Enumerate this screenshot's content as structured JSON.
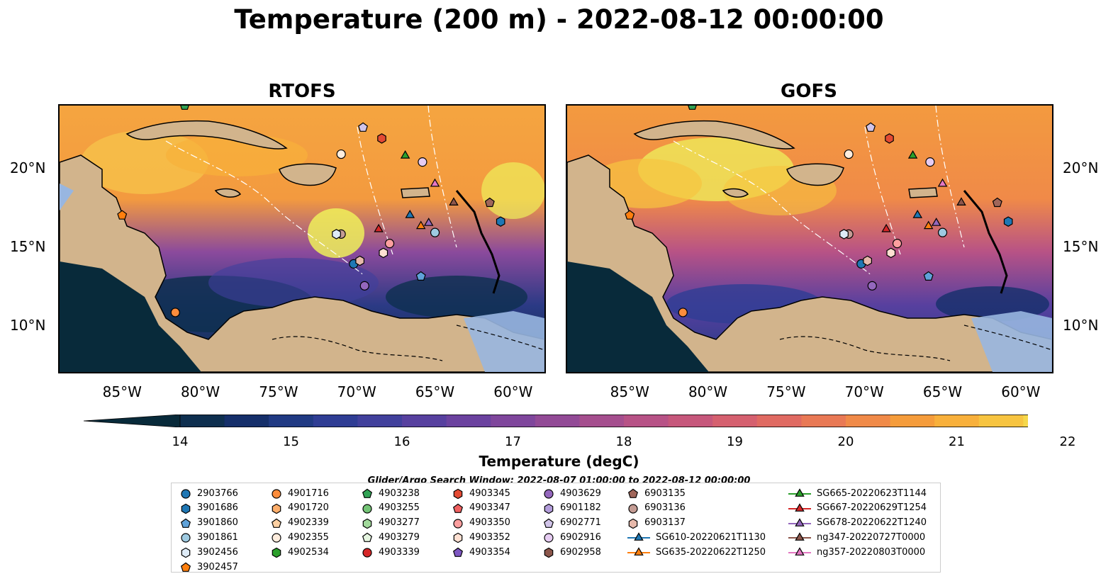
{
  "title": "Temperature (200 m) - 2022-08-12 00:00:00",
  "panels": [
    {
      "title": "RTOFS"
    },
    {
      "title": "GOFS"
    }
  ],
  "map": {
    "extent": {
      "lon": [
        -89,
        -58
      ],
      "lat": [
        7,
        24
      ]
    },
    "lon_ticks": [
      "85°W",
      "80°W",
      "75°W",
      "70°W",
      "65°W",
      "60°W"
    ],
    "lat_ticks": [
      "20°N",
      "15°N",
      "10°N"
    ],
    "colors": {
      "ocean_shelf": "#98b6e0",
      "land": "#d2b48c",
      "deep_ocean": "#082a3a"
    }
  },
  "colorbar": {
    "label": "Temperature (degC)",
    "ticks": [
      "14",
      "15",
      "16",
      "17",
      "18",
      "19",
      "20",
      "21",
      "22"
    ],
    "range": [
      14,
      22
    ],
    "colors": [
      "#082a3a",
      "#0e2f4f",
      "#152f6a",
      "#203a83",
      "#2f3d94",
      "#41409c",
      "#57409f",
      "#6b429f",
      "#7f469c",
      "#924a96",
      "#a54e8e",
      "#b75286",
      "#c6577b",
      "#d5606f",
      "#e06a62",
      "#e97955",
      "#f08a48",
      "#f59c3b",
      "#f8b03b",
      "#f7c440",
      "#f5d84b",
      "#eef05b"
    ]
  },
  "search_window": "Glider/Argo Search Window: 2022-08-07 01:00:00 to 2022-08-12 00:00:00",
  "legend": [
    {
      "label": "2903766",
      "marker": "circle",
      "color": "#1f77b4"
    },
    {
      "label": "3901686",
      "marker": "hexagon",
      "color": "#1f77b4"
    },
    {
      "label": "3901860",
      "marker": "pentagon",
      "color": "#5fa2d9"
    },
    {
      "label": "3901861",
      "marker": "circle",
      "color": "#9ecae1"
    },
    {
      "label": "3902456",
      "marker": "hexagon",
      "color": "#deebf7"
    },
    {
      "label": "3902457",
      "marker": "pentagon",
      "color": "#ff7f0e"
    },
    {
      "label": "4901716",
      "marker": "circle",
      "color": "#fd8d3c"
    },
    {
      "label": "4901720",
      "marker": "hexagon",
      "color": "#fdae6b"
    },
    {
      "label": "4902339",
      "marker": "pentagon",
      "color": "#fdd0a2"
    },
    {
      "label": "4902355",
      "marker": "circle",
      "color": "#feedde"
    },
    {
      "label": "4902534",
      "marker": "hexagon",
      "color": "#2ca02c"
    },
    {
      "label": "4903238",
      "marker": "pentagon",
      "color": "#31a354"
    },
    {
      "label": "4903255",
      "marker": "circle",
      "color": "#74c476"
    },
    {
      "label": "4903277",
      "marker": "hexagon",
      "color": "#a1d99b"
    },
    {
      "label": "4903279",
      "marker": "pentagon",
      "color": "#e5f5e0"
    },
    {
      "label": "4903339",
      "marker": "circle",
      "color": "#d62728"
    },
    {
      "label": "4903345",
      "marker": "hexagon",
      "color": "#e34a33"
    },
    {
      "label": "4903347",
      "marker": "pentagon",
      "color": "#f06060"
    },
    {
      "label": "4903350",
      "marker": "circle",
      "color": "#fc9f9f"
    },
    {
      "label": "4903352",
      "marker": "hexagon",
      "color": "#fee0d2"
    },
    {
      "label": "4903354",
      "marker": "pentagon",
      "color": "#7e57c2"
    },
    {
      "label": "4903629",
      "marker": "circle",
      "color": "#9467bd"
    },
    {
      "label": "6901182",
      "marker": "hexagon",
      "color": "#b39ddb"
    },
    {
      "label": "6902771",
      "marker": "pentagon",
      "color": "#d1c4e9"
    },
    {
      "label": "6902916",
      "marker": "circle",
      "color": "#e6ccf2"
    },
    {
      "label": "6902958",
      "marker": "hexagon",
      "color": "#8c564b"
    },
    {
      "label": "6903135",
      "marker": "pentagon",
      "color": "#a0665a"
    },
    {
      "label": "6903136",
      "marker": "circle",
      "color": "#c49c94"
    },
    {
      "label": "6903137",
      "marker": "hexagon",
      "color": "#e7b9ab"
    },
    {
      "label": "SG610-20220621T1130",
      "marker": "triangle-line",
      "color": "#1f77b4"
    },
    {
      "label": "SG635-20220622T1250",
      "marker": "triangle-line",
      "color": "#ff7f0e"
    },
    {
      "label": "SG665-20220623T1144",
      "marker": "triangle-line",
      "color": "#2ca02c"
    },
    {
      "label": "SG667-20220629T1254",
      "marker": "triangle-line",
      "color": "#d62728"
    },
    {
      "label": "SG678-20220622T1240",
      "marker": "triangle-line",
      "color": "#9467bd"
    },
    {
      "label": "ng347-20220727T0000",
      "marker": "triangle-line",
      "color": "#8c564b"
    },
    {
      "label": "ng357-20220803T0000",
      "marker": "triangle-line",
      "color": "#e377c2"
    }
  ],
  "points": [
    {
      "id": "3902457",
      "lon": -85,
      "lat": 17
    },
    {
      "id": "4901716",
      "lon": -81.6,
      "lat": 10.8
    },
    {
      "id": "4902355",
      "lon": -71,
      "lat": 20.9
    },
    {
      "id": "6903136",
      "lon": -71,
      "lat": 15.8
    },
    {
      "id": "3902456",
      "lon": -71.3,
      "lat": 15.8
    },
    {
      "id": "6902771",
      "lon": -69.6,
      "lat": 22.6
    },
    {
      "id": "4903345",
      "lon": -68.4,
      "lat": 21.9
    },
    {
      "id": "SG665-20220623T1144",
      "lon": -66.9,
      "lat": 20.8
    },
    {
      "id": "6902916",
      "lon": -65.8,
      "lat": 20.4
    },
    {
      "id": "ng357-20220803T0000",
      "lon": -65,
      "lat": 19
    },
    {
      "id": "ng347-20220727T0000",
      "lon": -63.8,
      "lat": 17.8
    },
    {
      "id": "6903135",
      "lon": -61.5,
      "lat": 17.8
    },
    {
      "id": "SG610-20220621T1130",
      "lon": -66.6,
      "lat": 17
    },
    {
      "id": "SG667-20220629T1254",
      "lon": -68.6,
      "lat": 16.1
    },
    {
      "id": "SG635-20220622T1250",
      "lon": -65.9,
      "lat": 16.3
    },
    {
      "id": "SG678-20220622T1240",
      "lon": -65.4,
      "lat": 16.5
    },
    {
      "id": "3901861",
      "lon": -65,
      "lat": 15.9
    },
    {
      "id": "3901686",
      "lon": -60.8,
      "lat": 16.6
    },
    {
      "id": "4903350",
      "lon": -67.9,
      "lat": 15.2
    },
    {
      "id": "4903352",
      "lon": -68.3,
      "lat": 14.6
    },
    {
      "id": "2903766",
      "lon": -70.2,
      "lat": 13.9
    },
    {
      "id": "6903137",
      "lon": -69.8,
      "lat": 14.1
    },
    {
      "id": "3901860",
      "lon": -65.9,
      "lat": 13.1
    },
    {
      "id": "4903629",
      "lon": -69.5,
      "lat": 12.5
    },
    {
      "id": "4903238",
      "lon": -81,
      "lat": 24
    }
  ]
}
